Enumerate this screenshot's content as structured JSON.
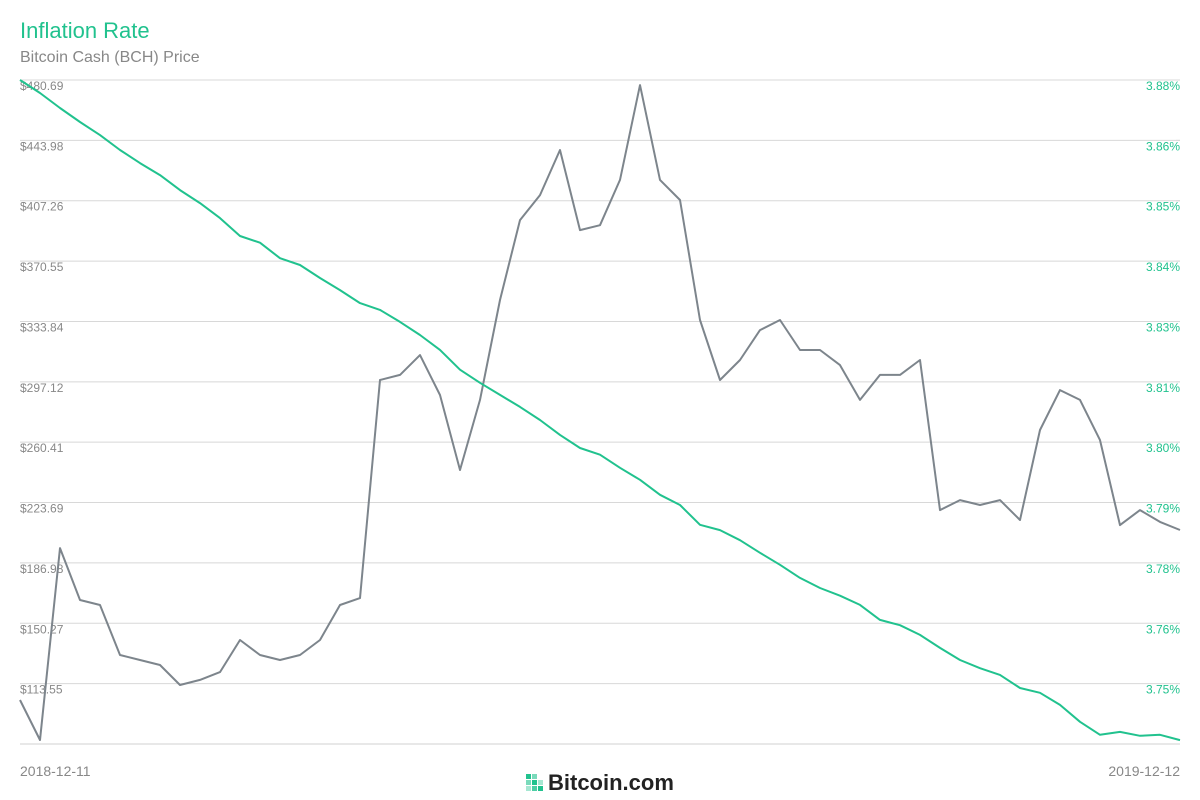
{
  "chart_data": {
    "type": "line",
    "title": "Inflation Rate",
    "subtitle": "Bitcoin Cash (BCH) Price",
    "logo": "Bitcoin.com",
    "categories": [
      "2018-12-11",
      null,
      null,
      null,
      null,
      null,
      null,
      null,
      null,
      null,
      null,
      null,
      null,
      null,
      null,
      null,
      null,
      null,
      null,
      null,
      null,
      null,
      null,
      null,
      null,
      null,
      null,
      null,
      null,
      null,
      null,
      null,
      null,
      null,
      null,
      null,
      null,
      null,
      null,
      null,
      null,
      null,
      null,
      null,
      null,
      null,
      null,
      null,
      null,
      null,
      null,
      null,
      null,
      null,
      null,
      null,
      null,
      null,
      "2019-12-12"
    ],
    "series": [
      {
        "color": "#7d858c",
        "axis": "y",
        "values": [
          103.6,
          79.3,
          196.0,
          164.4,
          161.4,
          131.0,
          127.9,
          124.9,
          112.7,
          115.8,
          120.6,
          140.1,
          131.0,
          127.9,
          131.0,
          140.1,
          161.4,
          165.6,
          298.2,
          301.3,
          313.4,
          289.1,
          243.5,
          286.1,
          346.9,
          395.5,
          410.7,
          438.1,
          389.4,
          392.4,
          419.9,
          477.6,
          419.9,
          407.7,
          334.7,
          298.2,
          310.4,
          328.6,
          334.7,
          316.5,
          316.5,
          307.3,
          286.1,
          301.3,
          301.3,
          310.4,
          219.1,
          225.2,
          222.2,
          225.2,
          213.1,
          267.8,
          292.1,
          286.1,
          261.7,
          210.0,
          219.1,
          211.9,
          207.0
        ]
      },
      {
        "color": "#21c28e",
        "axis": "y2",
        "values": [
          3.8755,
          3.8728,
          3.8697,
          3.8668,
          3.8641,
          3.861,
          3.8583,
          3.8558,
          3.8527,
          3.85,
          3.8469,
          3.8432,
          3.8418,
          3.8386,
          3.8372,
          3.8345,
          3.832,
          3.8293,
          3.8279,
          3.8254,
          3.8227,
          3.8196,
          3.8155,
          3.8128,
          3.8103,
          3.8078,
          3.8051,
          3.802,
          3.7993,
          3.7979,
          3.7952,
          3.7927,
          3.7896,
          3.7875,
          3.7834,
          3.7823,
          3.7802,
          3.7776,
          3.7751,
          3.7724,
          3.7703,
          3.7687,
          3.7668,
          3.7637,
          3.7626,
          3.7606,
          3.7579,
          3.7554,
          3.7537,
          3.7523,
          3.7496,
          3.7486,
          3.7461,
          3.7426,
          3.7399,
          3.7405,
          3.7397,
          3.7399,
          3.7388
        ]
      }
    ],
    "ylim": [
      76.84,
      480.69
    ],
    "yticks": [
      {
        "value": 480.69,
        "label": "$480.69"
      },
      {
        "value": 443.98,
        "label": "$443.98"
      },
      {
        "value": 407.26,
        "label": "$407.26"
      },
      {
        "value": 370.55,
        "label": "$370.55"
      },
      {
        "value": 333.84,
        "label": "$333.84"
      },
      {
        "value": 297.12,
        "label": "$297.12"
      },
      {
        "value": 260.41,
        "label": "$260.41"
      },
      {
        "value": 223.69,
        "label": "$223.69"
      },
      {
        "value": 186.98,
        "label": "$186.98"
      },
      {
        "value": 150.27,
        "label": "$150.27"
      },
      {
        "value": 113.55,
        "label": "$113.55"
      }
    ],
    "y2lim": [
      3.738,
      3.8755
    ],
    "y2ticks": [
      {
        "value": 3.8755,
        "label": "3.88%"
      },
      {
        "value": 3.863,
        "label": "3.86%"
      },
      {
        "value": 3.8505,
        "label": "3.85%"
      },
      {
        "value": 3.838,
        "label": "3.84%"
      },
      {
        "value": 3.8255,
        "label": "3.83%"
      },
      {
        "value": 3.813,
        "label": "3.81%"
      },
      {
        "value": 3.8005,
        "label": "3.80%"
      },
      {
        "value": 3.788,
        "label": "3.79%"
      },
      {
        "value": 3.7755,
        "label": "3.78%"
      },
      {
        "value": 3.763,
        "label": "3.76%"
      },
      {
        "value": 3.7505,
        "label": "3.75%"
      }
    ],
    "grid": true
  }
}
